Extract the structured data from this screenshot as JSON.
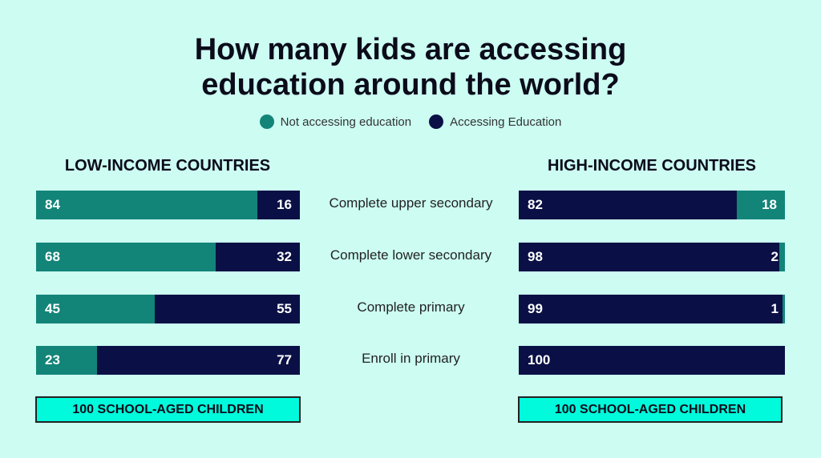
{
  "title_line1": "How many kids are accessing",
  "title_line2": "education around the world?",
  "colors": {
    "not_accessing": "#138478",
    "accessing": "#0a1045",
    "background": "#ccfcf2",
    "box": "#00fadb"
  },
  "chart_data": {
    "type": "bar",
    "orientation": "horizontal-stacked-100",
    "legend": [
      "Not accessing education",
      "Accessing Education"
    ],
    "legend_placement": "top-center",
    "categories": [
      "Complete upper secondary",
      "Complete lower secondary",
      "Complete primary",
      "Enroll in primary"
    ],
    "panels": [
      {
        "title": "LOW-INCOME COUNTRIES",
        "series": [
          {
            "name": "Not accessing education",
            "values": [
              84,
              68,
              45,
              23
            ]
          },
          {
            "name": "Accessing Education",
            "values": [
              16,
              32,
              55,
              77
            ]
          }
        ],
        "footer": "100 SCHOOL-AGED CHILDREN"
      },
      {
        "title": "HIGH-INCOME COUNTRIES",
        "series": [
          {
            "name": "Accessing Education",
            "values": [
              82,
              98,
              99,
              100
            ]
          },
          {
            "name": "Not accessing education",
            "values": [
              18,
              2,
              1,
              0
            ]
          }
        ],
        "footer": "100 SCHOOL-AGED CHILDREN"
      }
    ]
  }
}
